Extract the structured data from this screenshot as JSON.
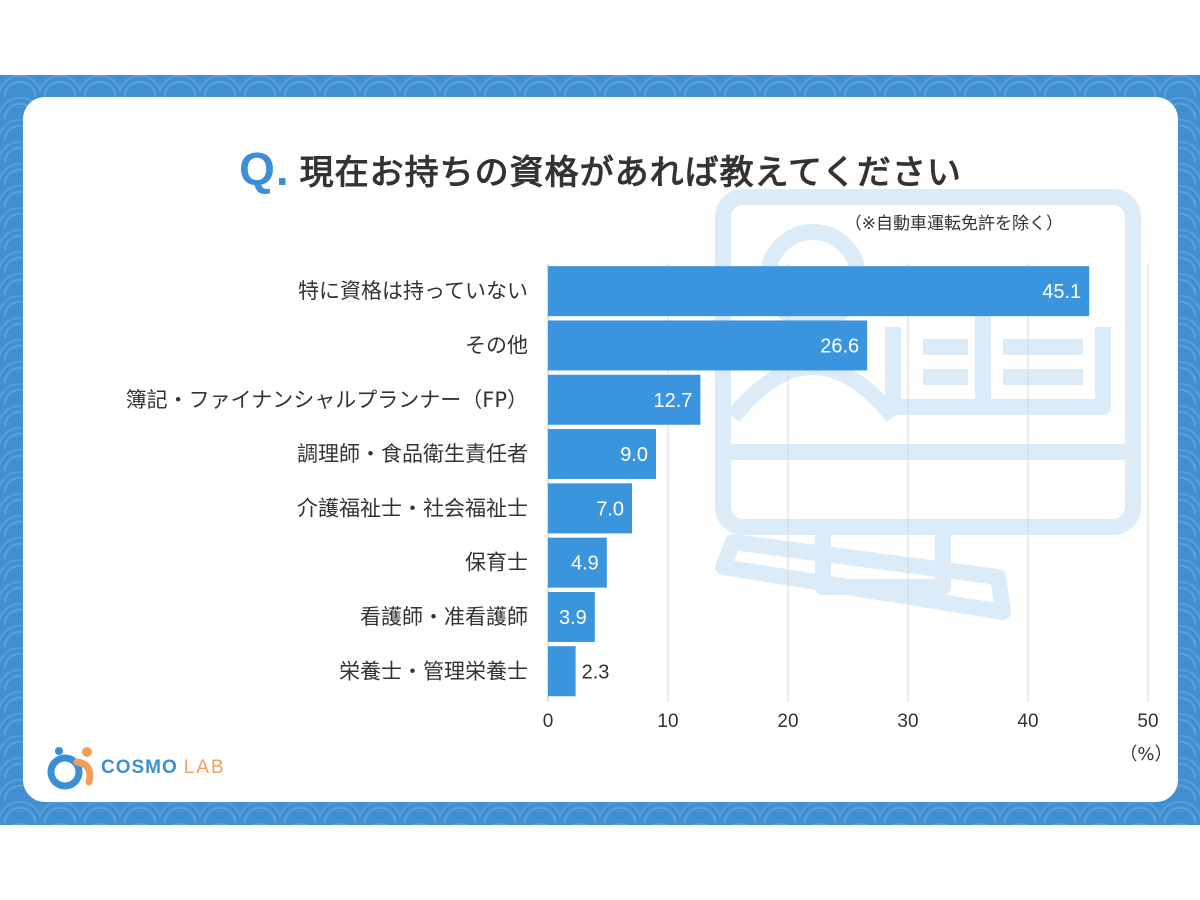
{
  "header": {
    "q_mark": "Q.",
    "title": "現在お持ちの資格があれば教えてください",
    "note": "（※自動車運転免許を除く）"
  },
  "brand": {
    "cosmo": "COSMO",
    "lab": "LAB"
  },
  "colors": {
    "bar": "#3b95de",
    "frame": "#3f8fd2",
    "accent": "#3b8fd6",
    "logo_orange": "#f0a05a",
    "deco": "#dcebf8"
  },
  "chart_data": {
    "type": "bar",
    "orientation": "horizontal",
    "categories": [
      "特に資格は持っていない",
      "その他",
      "簿記・ファイナンシャルプランナー（FP）",
      "調理師・食品衛生責任者",
      "介護福祉士・社会福祉士",
      "保育士",
      "看護師・准看護師",
      "栄養士・管理栄養士"
    ],
    "values": [
      45.1,
      26.6,
      12.7,
      9.0,
      7.0,
      4.9,
      3.9,
      2.3
    ],
    "value_labels": [
      "45.1",
      "26.6",
      "12.7",
      "9.0",
      "7.0",
      "4.9",
      "3.9",
      "2.3"
    ],
    "x_ticks": [
      "0",
      "10",
      "20",
      "30",
      "40",
      "50"
    ],
    "xlim": [
      0,
      50
    ],
    "unit_label": "（%）",
    "grid": true,
    "title": "現在お持ちの資格があれば教えてください",
    "xlabel": "",
    "ylabel": ""
  }
}
